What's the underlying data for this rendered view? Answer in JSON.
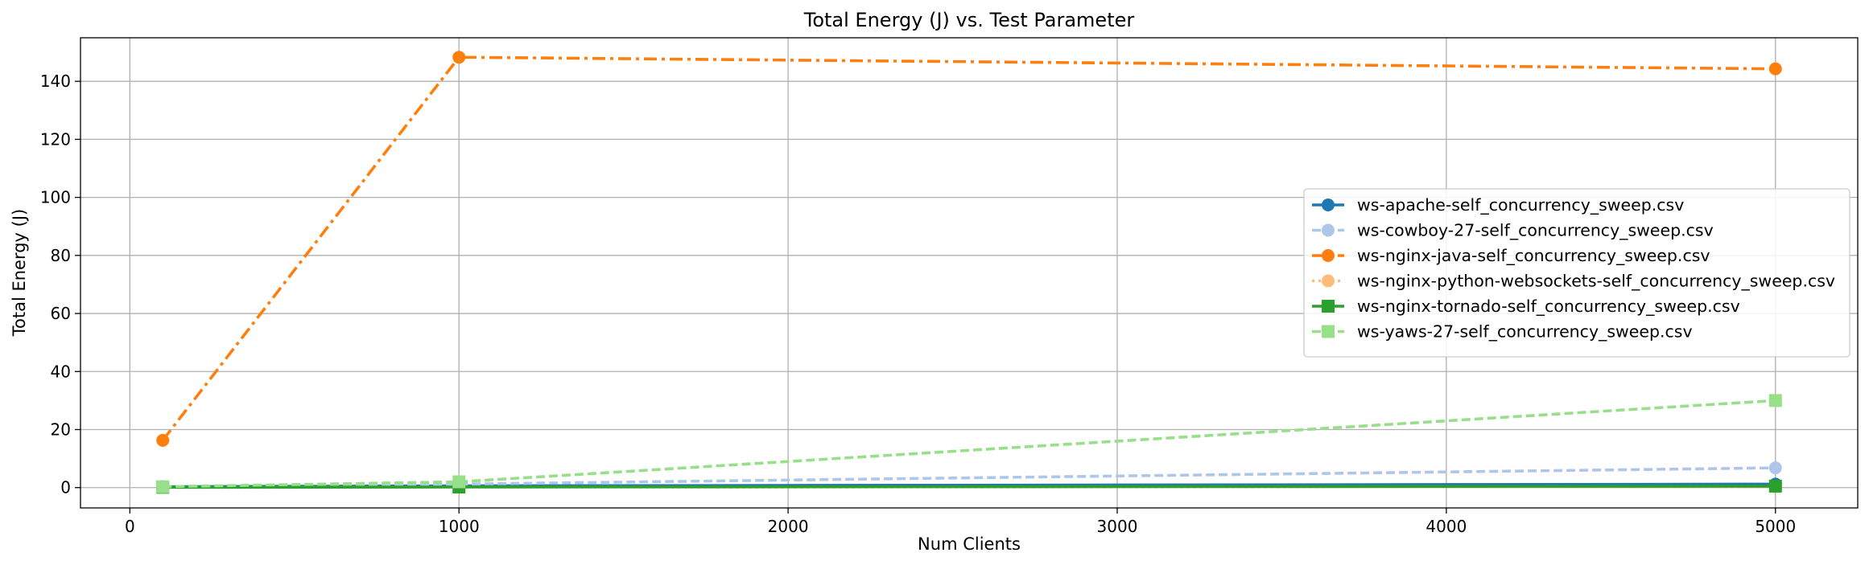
{
  "chart_data": {
    "type": "line",
    "title": "Total Energy (J) vs. Test Parameter",
    "xlabel": "Num Clients",
    "ylabel": "Total Energy (J)",
    "xlim": [
      -150,
      5250
    ],
    "ylim": [
      -7,
      155
    ],
    "xticks": [
      0,
      1000,
      2000,
      3000,
      4000,
      5000
    ],
    "yticks": [
      0,
      20,
      40,
      60,
      80,
      100,
      120,
      140
    ],
    "xtick_labels": [
      "0",
      "1000",
      "2000",
      "3000",
      "4000",
      "5000"
    ],
    "ytick_labels": [
      "0",
      "20",
      "40",
      "60",
      "80",
      "100",
      "120",
      "140"
    ],
    "grid": true,
    "legend_position": "center-right",
    "x": [
      100,
      1000,
      5000
    ],
    "series": [
      {
        "name": "ws-apache-self_concurrency_sweep.csv",
        "values": [
          0.3,
          0.6,
          1.2
        ],
        "color": "#1f77b4",
        "dash": "solid",
        "marker": "circle"
      },
      {
        "name": "ws-cowboy-27-self_concurrency_sweep.csv",
        "values": [
          0.2,
          1.2,
          6.8
        ],
        "color": "#aec7e8",
        "dash": "dashed",
        "marker": "circle"
      },
      {
        "name": "ws-nginx-java-self_concurrency_sweep.csv",
        "values": [
          16.3,
          148.3,
          144.3
        ],
        "color": "#ff7f0e",
        "dash": "dashdot",
        "marker": "circle"
      },
      {
        "name": "ws-nginx-python-websockets-self_concurrency_sweep.csv",
        "values": [
          0.1,
          0.2,
          0.3
        ],
        "color": "#ffbb78",
        "dash": "dotted",
        "marker": "circle"
      },
      {
        "name": "ws-nginx-tornado-self_concurrency_sweep.csv",
        "values": [
          0.1,
          0.2,
          0.5
        ],
        "color": "#2ca02c",
        "dash": "solid",
        "marker": "square"
      },
      {
        "name": "ws-yaws-27-self_concurrency_sweep.csv",
        "values": [
          0.3,
          2.0,
          30.0
        ],
        "color": "#98df8a",
        "dash": "dashed",
        "marker": "square"
      }
    ]
  }
}
